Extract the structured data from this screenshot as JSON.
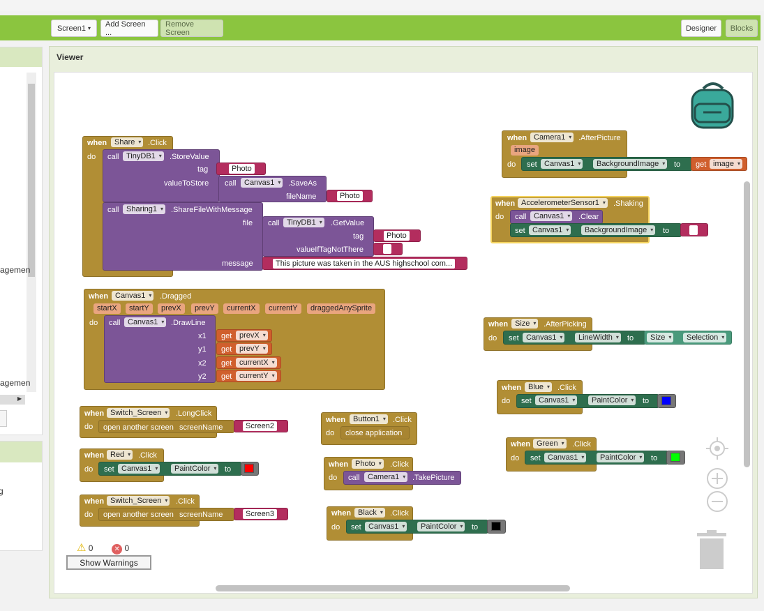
{
  "toolbar": {
    "screen_select": "Screen1",
    "add_screen": "Add Screen ...",
    "remove_screen": "Remove Screen",
    "designer": "Designer",
    "blocks": "Blocks"
  },
  "left": {
    "item1": "agemen",
    "item2": "agemen",
    "item3": "g"
  },
  "viewer": {
    "title": "Viewer"
  },
  "colors": {
    "toolbar": "#8bc53f",
    "event": "#b18e35",
    "procedure": "#7c5597",
    "setter": "#2e6e4e",
    "getter": "#d05f2d",
    "text": "#b32d5e"
  },
  "blocks": {
    "share": {
      "when": "when",
      "component": "Share",
      "event": ".Click",
      "do": "do",
      "call": "call",
      "db": "TinyDB1",
      "store": ".StoreValue",
      "tag": "tag",
      "tag_val": "Photo",
      "vts": "valueToStore",
      "canvas": "Canvas1",
      "saveas": ".SaveAs",
      "filename": "fileName",
      "fn_val": "Photo",
      "sharing": "Sharing1",
      "sfwm": ".ShareFileWithMessage",
      "file": "file",
      "getvalue": ".GetValue",
      "tag2_val": "Photo",
      "vitnt": "valueIfTagNotThere",
      "message": "message",
      "msg_val": "This picture was taken in the AUS highschool com..."
    },
    "dragged": {
      "component": "Canvas1",
      "event": ".Dragged",
      "params": [
        "startX",
        "startY",
        "prevX",
        "prevY",
        "currentX",
        "currentY",
        "draggedAnySprite"
      ],
      "drawline": ".DrawLine",
      "x1": "x1",
      "y1": "y1",
      "x2": "x2",
      "y2": "y2",
      "g1": "prevX",
      "g2": "prevY",
      "g3": "currentX",
      "g4": "currentY",
      "get": "get"
    },
    "longclick": {
      "component": "Switch_Screen",
      "event": ".LongClick",
      "open": "open another screen",
      "sn": "screenName",
      "val": "Screen2"
    },
    "red": {
      "component": "Red",
      "event": ".Click",
      "set": "set",
      "canvas": "Canvas1",
      "prop": "PaintColor",
      "to": "to",
      "color": "#ff0000"
    },
    "switch_click": {
      "component": "Switch_Screen",
      "event": ".Click",
      "val": "Screen3"
    },
    "button1": {
      "component": "Button1",
      "event": ".Click",
      "close": "close application"
    },
    "photo": {
      "component": "Photo",
      "event": ".Click",
      "camera": "Camera1",
      "take": ".TakePicture"
    },
    "black": {
      "component": "Black",
      "event": ".Click",
      "color": "#000000"
    },
    "camera": {
      "component": "Camera1",
      "event": ".AfterPicture",
      "param": "image",
      "prop": "BackgroundImage",
      "get_val": "image"
    },
    "accel": {
      "component": "AccelerometerSensor1",
      "event": ".Shaking",
      "clear": ".Clear",
      "prop": "BackgroundImage"
    },
    "size": {
      "component": "Size",
      "event": ".AfterPicking",
      "prop": "LineWidth",
      "sel": "Selection"
    },
    "blue": {
      "component": "Blue",
      "event": ".Click",
      "color": "#0000ff"
    },
    "green": {
      "component": "Green",
      "event": ".Click",
      "color": "#00ff00"
    }
  },
  "warnings": {
    "warn_count": "0",
    "error_count": "0",
    "show": "Show Warnings"
  }
}
